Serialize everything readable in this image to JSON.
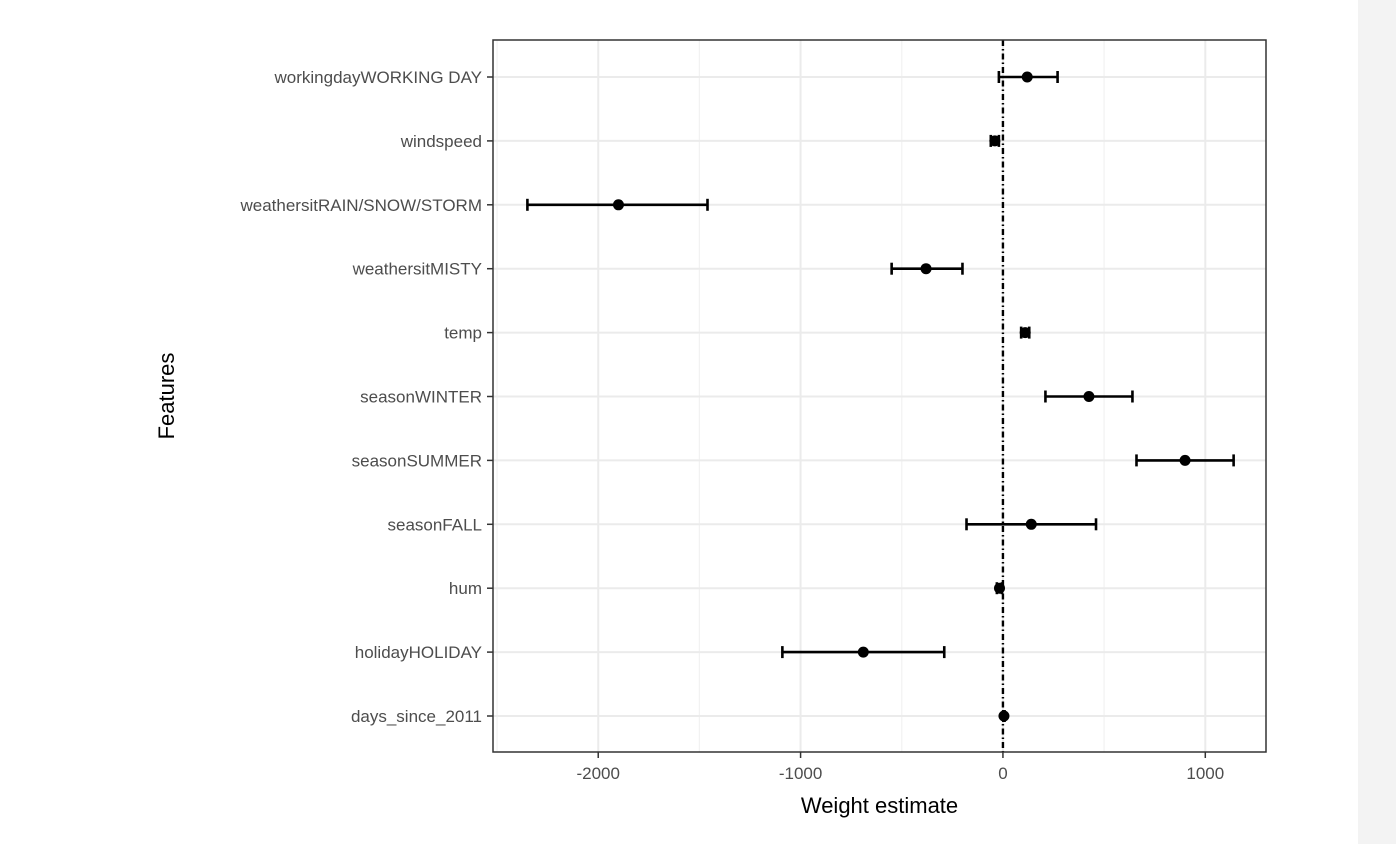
{
  "chart_data": {
    "type": "scatter",
    "style": "coefficient-plot-with-error-bars",
    "xlabel": "Weight estimate",
    "ylabel": "Features",
    "xlim": [
      -2520,
      1300
    ],
    "xticks": [
      -2000,
      -1000,
      0,
      1000
    ],
    "xtick_labels": [
      "-2000",
      "-1000",
      "0",
      "1000"
    ],
    "grid": true,
    "reference_line": {
      "x": 0,
      "style": "dotdash"
    },
    "features": [
      {
        "name": "workingdayWORKING DAY",
        "estimate": 120,
        "lower": -20,
        "upper": 270
      },
      {
        "name": "windspeed",
        "estimate": -40,
        "lower": -60,
        "upper": -20
      },
      {
        "name": "weathersitRAIN/SNOW/STORM",
        "estimate": -1900,
        "lower": -2350,
        "upper": -1460
      },
      {
        "name": "weathersitMISTY",
        "estimate": -380,
        "lower": -550,
        "upper": -200
      },
      {
        "name": "temp",
        "estimate": 110,
        "lower": 90,
        "upper": 130
      },
      {
        "name": "seasonWINTER",
        "estimate": 425,
        "lower": 210,
        "upper": 640
      },
      {
        "name": "seasonSUMMER",
        "estimate": 900,
        "lower": 660,
        "upper": 1140
      },
      {
        "name": "seasonFALL",
        "estimate": 140,
        "lower": -180,
        "upper": 460
      },
      {
        "name": "hum",
        "estimate": -17,
        "lower": -30,
        "upper": -5
      },
      {
        "name": "holidayHOLIDAY",
        "estimate": -690,
        "lower": -1090,
        "upper": -290
      },
      {
        "name": "days_since_2011",
        "estimate": 5,
        "lower": 2,
        "upper": 8
      }
    ]
  }
}
